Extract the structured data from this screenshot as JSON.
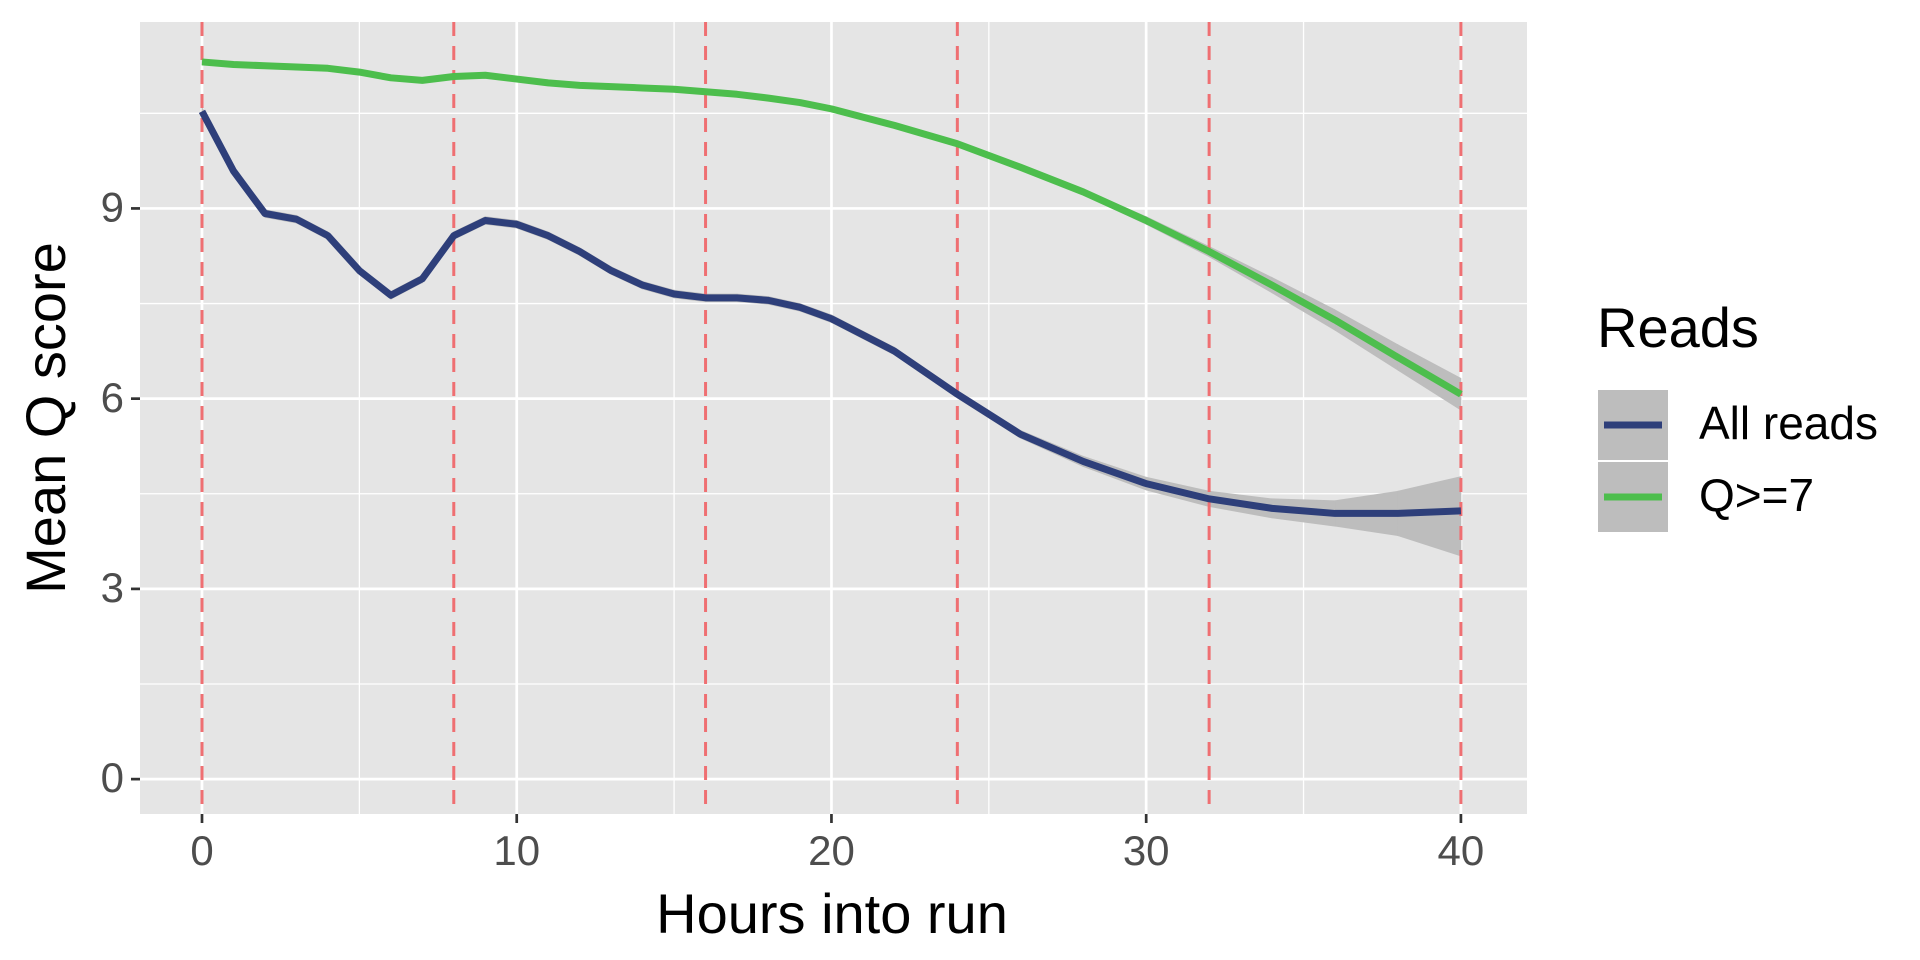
{
  "chart_data": {
    "type": "line",
    "x_label": "Hours into run",
    "y_label": "Mean Q score",
    "legend_title": "Reads",
    "legend_position": "right",
    "x": [
      0,
      1,
      2,
      3,
      4,
      5,
      6,
      7,
      8,
      9,
      10,
      11,
      12,
      13,
      14,
      15,
      16,
      17,
      18,
      19,
      20,
      22,
      24,
      26,
      28,
      30,
      32,
      34,
      36,
      38,
      40
    ],
    "series": [
      {
        "name": "All reads",
        "color": "#2e3f7a",
        "values": [
          10.53,
          9.59,
          8.92,
          8.83,
          8.57,
          8.02,
          7.63,
          7.89,
          8.57,
          8.81,
          8.75,
          8.57,
          8.32,
          8.02,
          7.79,
          7.65,
          7.59,
          7.59,
          7.55,
          7.44,
          7.26,
          6.75,
          6.07,
          5.44,
          5.01,
          4.66,
          4.42,
          4.27,
          4.19,
          4.19,
          4.23
        ],
        "lower": [
          10.47,
          9.53,
          8.86,
          8.77,
          8.51,
          7.96,
          7.57,
          7.83,
          8.51,
          8.75,
          8.69,
          8.51,
          8.26,
          7.96,
          7.73,
          7.59,
          7.53,
          7.53,
          7.49,
          7.38,
          7.2,
          6.69,
          6.01,
          5.38,
          4.93,
          4.56,
          4.3,
          4.12,
          3.99,
          3.84,
          3.52
        ],
        "upper": [
          10.59,
          9.65,
          8.98,
          8.89,
          8.63,
          8.08,
          7.69,
          7.95,
          8.63,
          8.87,
          8.81,
          8.63,
          8.38,
          8.08,
          7.85,
          7.71,
          7.65,
          7.65,
          7.61,
          7.5,
          7.32,
          6.81,
          6.13,
          5.5,
          5.09,
          4.76,
          4.54,
          4.42,
          4.39,
          4.54,
          4.77
        ]
      },
      {
        "name": "Q>=7",
        "color": "#4dbe4d",
        "values": [
          11.31,
          11.27,
          11.25,
          11.23,
          11.21,
          11.15,
          11.06,
          11.02,
          11.08,
          11.1,
          11.04,
          10.98,
          10.94,
          10.92,
          10.9,
          10.88,
          10.84,
          10.8,
          10.74,
          10.67,
          10.57,
          10.31,
          10.02,
          9.65,
          9.26,
          8.81,
          8.32,
          7.79,
          7.24,
          6.65,
          6.07
        ],
        "lower": [
          11.27,
          11.23,
          11.21,
          11.19,
          11.17,
          11.11,
          11.02,
          10.98,
          11.04,
          11.06,
          11.0,
          10.94,
          10.9,
          10.88,
          10.86,
          10.84,
          10.8,
          10.76,
          10.7,
          10.63,
          10.53,
          10.27,
          9.98,
          9.61,
          9.22,
          8.75,
          8.24,
          7.67,
          7.08,
          6.45,
          5.82
        ],
        "upper": [
          11.35,
          11.31,
          11.29,
          11.27,
          11.25,
          11.19,
          11.1,
          11.06,
          11.12,
          11.14,
          11.08,
          11.02,
          10.98,
          10.96,
          10.94,
          10.92,
          10.88,
          10.84,
          10.78,
          10.71,
          10.61,
          10.35,
          10.06,
          9.69,
          9.3,
          8.87,
          8.4,
          7.91,
          7.4,
          6.85,
          6.32
        ]
      }
    ],
    "band_color": "#bdbdbd",
    "vlines": [
      0,
      8,
      16,
      24,
      32,
      40
    ],
    "vline_color": "#ef6f72",
    "xlim": [
      -1.97,
      42.1
    ],
    "ylim": [
      -0.55,
      11.94
    ],
    "xticks": [
      0,
      10,
      20,
      30,
      40
    ],
    "yticks": [
      0,
      3,
      6,
      9
    ],
    "x_minor_ticks": [
      5,
      15,
      25,
      35
    ],
    "y_minor_ticks": [
      1.5,
      4.5,
      7.5,
      10.5
    ],
    "grid": true
  }
}
